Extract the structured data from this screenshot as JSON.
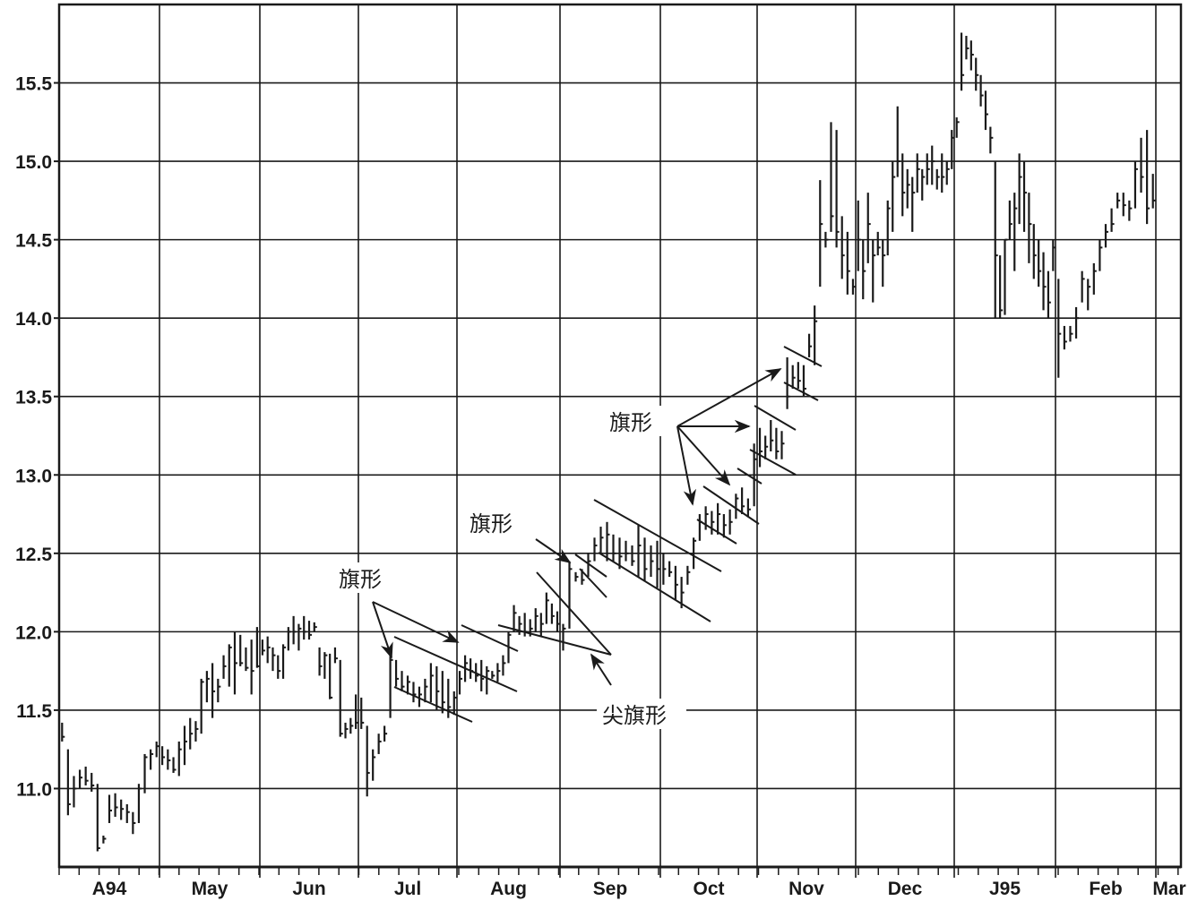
{
  "chart_data": {
    "type": "bar",
    "subtype": "high-low-close",
    "title": "",
    "xlabel": "",
    "ylabel": "",
    "ylim": [
      10.5,
      16.0
    ],
    "yticks": [
      "11.0",
      "11.5",
      "12.0",
      "12.5",
      "13.0",
      "13.5",
      "14.0",
      "14.5",
      "15.0",
      "15.5"
    ],
    "grid": true,
    "bar_color": "#1a1a1a",
    "trailing_tick_label": "Mar",
    "bar_format": "[high, low, close]",
    "months": [
      {
        "label": "A94",
        "bars": [
          [
            11.42,
            11.3,
            11.33
          ],
          [
            11.25,
            10.83,
            10.9
          ],
          [
            11.08,
            10.88,
            11.0
          ],
          [
            11.12,
            11.0,
            11.07
          ],
          [
            11.14,
            11.02,
            11.05
          ],
          [
            11.1,
            10.98,
            11.02
          ],
          [
            11.03,
            10.6,
            10.62
          ],
          [
            10.7,
            10.65,
            10.68
          ],
          [
            10.96,
            10.78,
            10.86
          ],
          [
            10.97,
            10.82,
            10.88
          ],
          [
            10.93,
            10.8,
            10.87
          ],
          [
            10.9,
            10.78,
            10.85
          ],
          [
            10.85,
            10.71,
            10.78
          ],
          [
            11.03,
            10.78,
            11.0
          ],
          [
            11.22,
            10.97,
            11.2
          ],
          [
            11.25,
            11.12,
            11.22
          ],
          [
            11.3,
            11.2,
            11.27
          ]
        ]
      },
      {
        "label": "May",
        "bars": [
          [
            11.27,
            11.15,
            11.2
          ],
          [
            11.25,
            11.12,
            11.18
          ],
          [
            11.2,
            11.1,
            11.12
          ],
          [
            11.3,
            11.08,
            11.25
          ],
          [
            11.4,
            11.15,
            11.3
          ],
          [
            11.45,
            11.25,
            11.35
          ],
          [
            11.43,
            11.3,
            11.38
          ],
          [
            11.7,
            11.35,
            11.68
          ],
          [
            11.75,
            11.55,
            11.7
          ],
          [
            11.8,
            11.45,
            11.62
          ],
          [
            11.7,
            11.55,
            11.65
          ],
          [
            11.85,
            11.7,
            11.78
          ],
          [
            11.92,
            11.65,
            11.9
          ],
          [
            12.0,
            11.6,
            11.8
          ],
          [
            11.98,
            11.78,
            11.8
          ],
          [
            11.9,
            11.75,
            11.77
          ],
          [
            11.95,
            11.6,
            11.75
          ],
          [
            12.03,
            11.77,
            11.78
          ]
        ]
      },
      {
        "label": "Jun",
        "bars": [
          [
            11.95,
            11.85,
            11.88
          ],
          [
            11.97,
            11.8,
            11.9
          ],
          [
            11.9,
            11.75,
            11.85
          ],
          [
            11.85,
            11.7,
            11.75
          ],
          [
            11.92,
            11.7,
            11.9
          ],
          [
            12.03,
            11.88,
            12.0
          ],
          [
            12.1,
            11.92,
            12.0
          ],
          [
            12.05,
            11.88,
            12.02
          ],
          [
            12.1,
            11.95,
            12.0
          ],
          [
            12.07,
            11.95,
            11.98
          ],
          [
            12.06,
            12.0,
            12.03
          ],
          [
            11.9,
            11.72,
            11.78
          ],
          [
            11.87,
            11.7,
            11.85
          ],
          [
            11.86,
            11.57,
            11.58
          ],
          [
            11.9,
            11.8,
            11.83
          ],
          [
            11.82,
            11.33,
            11.35
          ],
          [
            11.42,
            11.32,
            11.38
          ],
          [
            11.45,
            11.35,
            11.4
          ],
          [
            11.6,
            11.38,
            11.42
          ]
        ]
      },
      {
        "label": "Jul",
        "bars": [
          [
            11.58,
            11.38,
            11.42
          ],
          [
            11.4,
            10.95,
            11.1
          ],
          [
            11.25,
            11.05,
            11.2
          ],
          [
            11.35,
            11.22,
            11.3
          ],
          [
            11.4,
            11.3,
            11.35
          ],
          [
            11.85,
            11.45,
            11.82
          ],
          [
            11.82,
            11.65,
            11.7
          ],
          [
            11.75,
            11.62,
            11.65
          ],
          [
            11.72,
            11.6,
            11.68
          ],
          [
            11.68,
            11.55,
            11.6
          ],
          [
            11.65,
            11.52,
            11.6
          ],
          [
            11.7,
            11.55,
            11.65
          ],
          [
            11.8,
            11.55,
            11.72
          ],
          [
            11.78,
            11.5,
            11.62
          ],
          [
            11.75,
            11.48,
            11.55
          ],
          [
            11.7,
            11.45,
            11.52
          ],
          [
            11.62,
            11.47,
            11.58
          ]
        ]
      },
      {
        "label": "Aug",
        "bars": [
          [
            11.75,
            11.6,
            11.7
          ],
          [
            11.85,
            11.68,
            11.8
          ],
          [
            11.83,
            11.7,
            11.75
          ],
          [
            11.8,
            11.68,
            11.72
          ],
          [
            11.82,
            11.62,
            11.7
          ],
          [
            11.78,
            11.6,
            11.75
          ],
          [
            11.75,
            11.7,
            11.72
          ],
          [
            11.8,
            11.68,
            11.75
          ],
          [
            11.85,
            11.72,
            11.8
          ],
          [
            12.0,
            11.8,
            11.98
          ],
          [
            12.17,
            12.0,
            12.12
          ],
          [
            12.1,
            11.98,
            12.05
          ],
          [
            12.12,
            11.97,
            12.0
          ],
          [
            12.08,
            11.97,
            12.02
          ],
          [
            12.15,
            12.0,
            12.1
          ],
          [
            12.12,
            11.97,
            12.05
          ],
          [
            12.25,
            12.05,
            12.2
          ],
          [
            12.18,
            12.05,
            12.1
          ],
          [
            12.13,
            12.0,
            12.05
          ]
        ]
      },
      {
        "label": "Sep",
        "bars": [
          [
            12.05,
            11.88,
            12.02
          ],
          [
            12.45,
            12.02,
            12.4
          ],
          [
            12.38,
            12.32,
            12.35
          ],
          [
            12.4,
            12.3,
            12.33
          ],
          [
            12.5,
            12.35,
            12.45
          ],
          [
            12.6,
            12.45,
            12.55
          ],
          [
            12.67,
            12.5,
            12.6
          ],
          [
            12.7,
            12.45,
            12.62
          ],
          [
            12.62,
            12.45,
            12.5
          ],
          [
            12.6,
            12.4,
            12.48
          ],
          [
            12.58,
            12.45,
            12.5
          ],
          [
            12.55,
            12.42,
            12.45
          ],
          [
            12.68,
            12.35,
            12.55
          ],
          [
            12.6,
            12.32,
            12.4
          ],
          [
            12.55,
            12.35,
            12.45
          ],
          [
            12.58,
            12.28,
            12.4
          ]
        ]
      },
      {
        "label": "Oct",
        "bars": [
          [
            12.5,
            12.3,
            12.4
          ],
          [
            12.45,
            12.35,
            12.38
          ],
          [
            12.42,
            12.2,
            12.3
          ],
          [
            12.35,
            12.15,
            12.25
          ],
          [
            12.42,
            12.3,
            12.38
          ],
          [
            12.6,
            12.4,
            12.58
          ],
          [
            12.75,
            12.58,
            12.7
          ],
          [
            12.8,
            12.65,
            12.75
          ],
          [
            12.77,
            12.62,
            12.7
          ],
          [
            12.82,
            12.62,
            12.75
          ],
          [
            12.75,
            12.6,
            12.68
          ],
          [
            12.78,
            12.62,
            12.7
          ],
          [
            12.88,
            12.72,
            12.85
          ],
          [
            12.92,
            12.75,
            12.8
          ],
          [
            12.85,
            12.73,
            12.78
          ],
          [
            13.2,
            12.8,
            13.1
          ]
        ]
      },
      {
        "label": "Nov",
        "bars": [
          [
            13.3,
            13.05,
            13.15
          ],
          [
            13.25,
            13.1,
            13.18
          ],
          [
            13.35,
            13.15,
            13.22
          ],
          [
            13.3,
            13.1,
            13.15
          ],
          [
            13.28,
            13.1,
            13.2
          ],
          [
            13.75,
            13.42,
            13.5
          ],
          [
            13.7,
            13.55,
            13.62
          ],
          [
            13.72,
            13.55,
            13.6
          ],
          [
            13.7,
            13.5,
            13.55
          ],
          [
            13.9,
            13.75,
            13.82
          ],
          [
            14.08,
            13.7,
            13.98
          ],
          [
            14.88,
            14.2,
            14.6
          ],
          [
            14.55,
            14.45,
            14.5
          ],
          [
            15.25,
            14.55,
            14.65
          ],
          [
            15.2,
            14.45,
            14.55
          ],
          [
            14.65,
            14.25,
            14.4
          ],
          [
            14.55,
            14.15,
            14.3
          ],
          [
            14.25,
            14.15,
            14.2
          ]
        ]
      },
      {
        "label": "Dec",
        "bars": [
          [
            14.75,
            14.3,
            14.5
          ],
          [
            14.5,
            14.12,
            14.3
          ],
          [
            14.8,
            14.35,
            14.6
          ],
          [
            14.5,
            14.1,
            14.4
          ],
          [
            14.55,
            14.4,
            14.45
          ],
          [
            14.5,
            14.2,
            14.4
          ],
          [
            14.75,
            14.4,
            14.7
          ],
          [
            15.0,
            14.55,
            14.9
          ],
          [
            15.35,
            14.9,
            15.0
          ],
          [
            15.05,
            14.65,
            14.8
          ],
          [
            14.95,
            14.7,
            14.85
          ],
          [
            14.9,
            14.55,
            14.8
          ],
          [
            15.05,
            14.8,
            14.95
          ],
          [
            14.95,
            14.75,
            14.9
          ],
          [
            15.05,
            14.85,
            14.95
          ],
          [
            15.1,
            14.85,
            15.0
          ],
          [
            14.95,
            14.82,
            14.9
          ],
          [
            15.05,
            14.8,
            14.9
          ],
          [
            15.0,
            14.85,
            14.95
          ],
          [
            15.2,
            14.95,
            15.15
          ]
        ]
      },
      {
        "label": "J95",
        "bars": [
          [
            15.28,
            15.15,
            15.25
          ],
          [
            15.82,
            15.45,
            15.55
          ],
          [
            15.8,
            15.65,
            15.72
          ],
          [
            15.77,
            15.58,
            15.68
          ],
          [
            15.66,
            15.45,
            15.55
          ],
          [
            15.55,
            15.35,
            15.42
          ],
          [
            15.45,
            15.2,
            15.3
          ],
          [
            15.22,
            15.05,
            15.15
          ],
          [
            15.0,
            14.0,
            14.4
          ],
          [
            14.4,
            14.0,
            14.05
          ],
          [
            14.5,
            14.02,
            14.5
          ],
          [
            14.75,
            14.5,
            14.6
          ],
          [
            14.8,
            14.3,
            14.7
          ],
          [
            15.05,
            14.6,
            14.9
          ],
          [
            15.0,
            14.55,
            14.8
          ],
          [
            14.8,
            14.35,
            14.6
          ],
          [
            14.6,
            14.25,
            14.4
          ],
          [
            14.5,
            14.2,
            14.3
          ],
          [
            14.42,
            14.05,
            14.2
          ],
          [
            14.3,
            14.0,
            14.1
          ],
          [
            14.5,
            14.3,
            14.45
          ]
        ]
      },
      {
        "label": "Feb",
        "bars": [
          [
            14.25,
            13.62,
            13.9
          ],
          [
            13.95,
            13.8,
            13.85
          ],
          [
            13.95,
            13.85,
            13.9
          ],
          [
            14.07,
            13.87,
            14.0
          ],
          [
            14.3,
            14.1,
            14.25
          ],
          [
            14.25,
            14.05,
            14.2
          ],
          [
            14.35,
            14.15,
            14.3
          ],
          [
            14.5,
            14.3,
            14.45
          ],
          [
            14.6,
            14.45,
            14.55
          ],
          [
            14.7,
            14.55,
            14.6
          ],
          [
            14.8,
            14.7,
            14.75
          ],
          [
            14.8,
            14.65,
            14.72
          ],
          [
            14.75,
            14.62,
            14.7
          ],
          [
            15.0,
            14.7,
            14.95
          ],
          [
            15.15,
            14.8,
            14.9
          ],
          [
            15.2,
            14.6,
            14.7
          ],
          [
            14.92,
            14.7,
            14.75
          ]
        ]
      }
    ],
    "annotations": {
      "flag_label": "旗形",
      "pennant_label": "尖旗形"
    }
  }
}
